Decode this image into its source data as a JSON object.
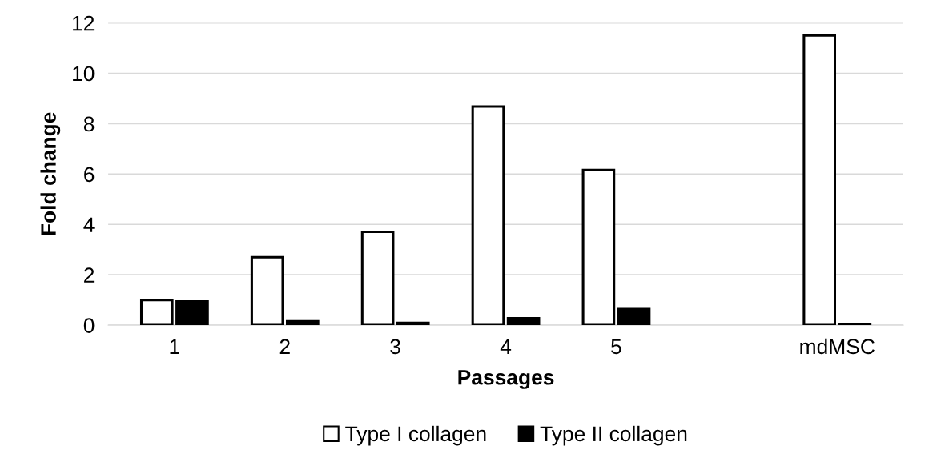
{
  "chart_data": {
    "type": "bar",
    "xlabel": "Passages",
    "ylabel": "Fold change",
    "categories": [
      "1",
      "2",
      "3",
      "4",
      "5",
      null,
      "mdMSC"
    ],
    "series": [
      {
        "name": "Type I collagen",
        "color": "#ffffff",
        "values": [
          1.0,
          2.7,
          3.71,
          8.68,
          6.16,
          null,
          11.5
        ]
      },
      {
        "name": "Type II collagen",
        "color": "#000000",
        "values": [
          0.94,
          0.15,
          0.09,
          0.27,
          0.64,
          null,
          0.05
        ]
      }
    ],
    "ylim": [
      0,
      12
    ],
    "yticks": [
      0,
      2,
      4,
      6,
      8,
      10,
      12
    ],
    "grid": "y",
    "legend": "bottom"
  }
}
